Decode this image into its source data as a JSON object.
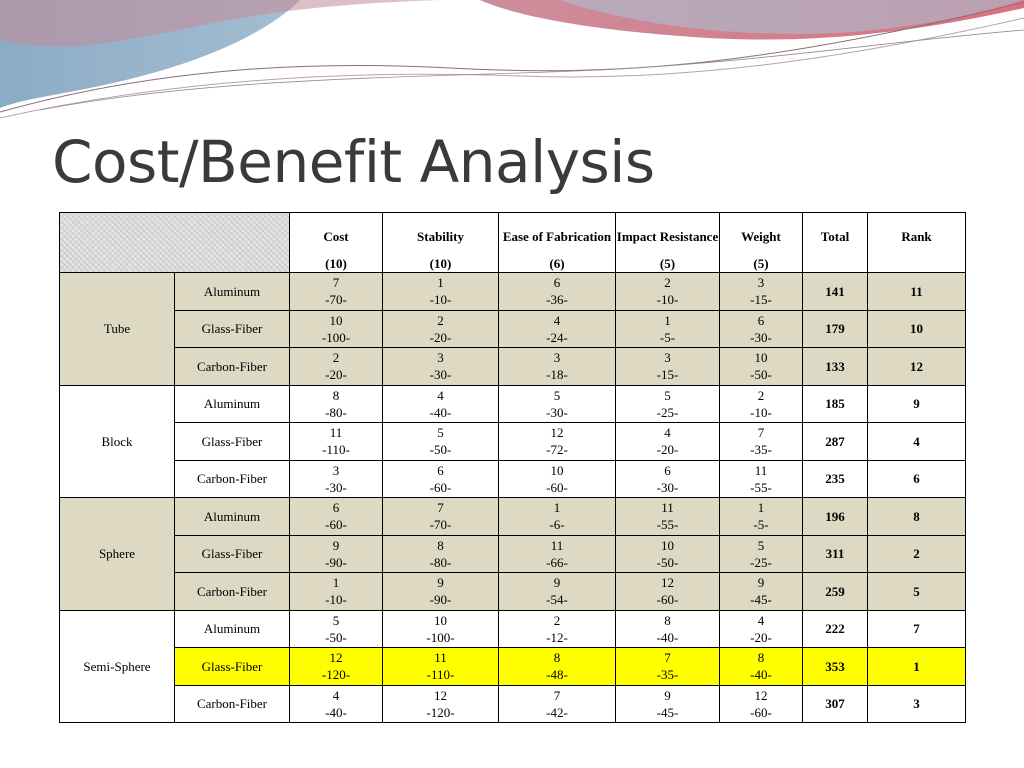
{
  "slide": {
    "title": "Cost/Benefit Analysis"
  },
  "table": {
    "headers": [
      {
        "label": "Cost",
        "weight": "(10)"
      },
      {
        "label": "Stability",
        "weight": "(10)"
      },
      {
        "label": "Ease of Fabrication",
        "weight": "(6)"
      },
      {
        "label": "Impact Resistance",
        "weight": "(5)"
      },
      {
        "label": "Weight",
        "weight": "(5)"
      },
      {
        "label": "Total",
        "weight": ""
      },
      {
        "label": "Rank",
        "weight": ""
      }
    ],
    "groups": [
      {
        "name": "Tube",
        "rows": [
          {
            "material": "Aluminum",
            "cost": [
              "7",
              "-70-"
            ],
            "stability": [
              "1",
              "-10-"
            ],
            "fabrication": [
              "6",
              "-36-"
            ],
            "impact": [
              "2",
              "-10-"
            ],
            "weight": [
              "3",
              "-15-"
            ],
            "total": "141",
            "rank": "11"
          },
          {
            "material": "Glass-Fiber",
            "cost": [
              "10",
              "-100-"
            ],
            "stability": [
              "2",
              "-20-"
            ],
            "fabrication": [
              "4",
              "-24-"
            ],
            "impact": [
              "1",
              "-5-"
            ],
            "weight": [
              "6",
              "-30-"
            ],
            "total": "179",
            "rank": "10"
          },
          {
            "material": "Carbon-Fiber",
            "cost": [
              "2",
              "-20-"
            ],
            "stability": [
              "3",
              "-30-"
            ],
            "fabrication": [
              "3",
              "-18-"
            ],
            "impact": [
              "3",
              "-15-"
            ],
            "weight": [
              "10",
              "-50-"
            ],
            "total": "133",
            "rank": "12"
          }
        ]
      },
      {
        "name": "Block",
        "rows": [
          {
            "material": "Aluminum",
            "cost": [
              "8",
              "-80-"
            ],
            "stability": [
              "4",
              "-40-"
            ],
            "fabrication": [
              "5",
              "-30-"
            ],
            "impact": [
              "5",
              "-25-"
            ],
            "weight": [
              "2",
              "-10-"
            ],
            "total": "185",
            "rank": "9"
          },
          {
            "material": "Glass-Fiber",
            "cost": [
              "11",
              "-110-"
            ],
            "stability": [
              "5",
              "-50-"
            ],
            "fabrication": [
              "12",
              "-72-"
            ],
            "impact": [
              "4",
              "-20-"
            ],
            "weight": [
              "7",
              "-35-"
            ],
            "total": "287",
            "rank": "4"
          },
          {
            "material": "Carbon-Fiber",
            "cost": [
              "3",
              "-30-"
            ],
            "stability": [
              "6",
              "-60-"
            ],
            "fabrication": [
              "10",
              "-60-"
            ],
            "impact": [
              "6",
              "-30-"
            ],
            "weight": [
              "11",
              "-55-"
            ],
            "total": "235",
            "rank": "6"
          }
        ]
      },
      {
        "name": "Sphere",
        "rows": [
          {
            "material": "Aluminum",
            "cost": [
              "6",
              "-60-"
            ],
            "stability": [
              "7",
              "-70-"
            ],
            "fabrication": [
              "1",
              "-6-"
            ],
            "impact": [
              "11",
              "-55-"
            ],
            "weight": [
              "1",
              "-5-"
            ],
            "total": "196",
            "rank": "8"
          },
          {
            "material": "Glass-Fiber",
            "cost": [
              "9",
              "-90-"
            ],
            "stability": [
              "8",
              "-80-"
            ],
            "fabrication": [
              "11",
              "-66-"
            ],
            "impact": [
              "10",
              "-50-"
            ],
            "weight": [
              "5",
              "-25-"
            ],
            "total": "311",
            "rank": "2"
          },
          {
            "material": "Carbon-Fiber",
            "cost": [
              "1",
              "-10-"
            ],
            "stability": [
              "9",
              "-90-"
            ],
            "fabrication": [
              "9",
              "-54-"
            ],
            "impact": [
              "12",
              "-60-"
            ],
            "weight": [
              "9",
              "-45-"
            ],
            "total": "259",
            "rank": "5"
          }
        ]
      },
      {
        "name": "Semi-Sphere",
        "rows": [
          {
            "material": "Aluminum",
            "cost": [
              "5",
              "-50-"
            ],
            "stability": [
              "10",
              "-100-"
            ],
            "fabrication": [
              "2",
              "-12-"
            ],
            "impact": [
              "8",
              "-40-"
            ],
            "weight": [
              "4",
              "-20-"
            ],
            "total": "222",
            "rank": "7"
          },
          {
            "material": "Glass-Fiber",
            "cost": [
              "12",
              "-120-"
            ],
            "stability": [
              "11",
              "-110-"
            ],
            "fabrication": [
              "8",
              "-48-"
            ],
            "impact": [
              "7",
              "-35-"
            ],
            "weight": [
              "8",
              "-40-"
            ],
            "total": "353",
            "rank": "1"
          },
          {
            "material": "Carbon-Fiber",
            "cost": [
              "4",
              "-40-"
            ],
            "stability": [
              "12",
              "-120-"
            ],
            "fabrication": [
              "7",
              "-42-"
            ],
            "impact": [
              "9",
              "-45-"
            ],
            "weight": [
              "12",
              "-60-"
            ],
            "total": "307",
            "rank": "3"
          }
        ]
      }
    ]
  },
  "colors": {
    "shaded": "#ddd9c3",
    "highlight": "#ffff00",
    "title": "#3a3a3a"
  }
}
